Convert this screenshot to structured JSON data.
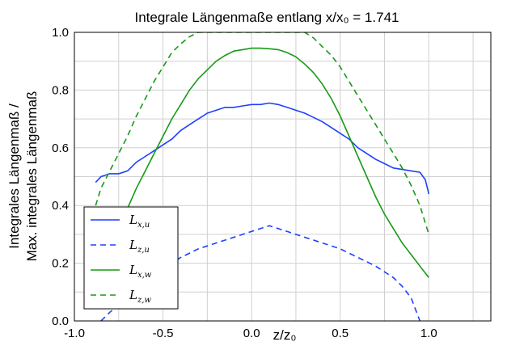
{
  "chart_data": {
    "type": "line",
    "title": "Integrale Längenmaße entlang x/x₀ = 1.741",
    "xlabel": "z/z₀",
    "ylabel_line1": "Integrales Längenmaß /",
    "ylabel_line2": "Max. integrales Längenmaß",
    "xlim": [
      -1.0,
      1.35
    ],
    "ylim": [
      0.0,
      1.0
    ],
    "xticks": [
      -1.0,
      -0.5,
      0.0,
      0.5,
      1.0
    ],
    "xtick_labels": [
      "-1.0",
      "-0.5",
      "0.0",
      "0.5",
      "1.0"
    ],
    "yticks": [
      0.0,
      0.2,
      0.4,
      0.6,
      0.8,
      1.0
    ],
    "ytick_labels": [
      "0.0",
      "0.2",
      "0.4",
      "0.6",
      "0.8",
      "1.0"
    ],
    "grid": true,
    "legend_position": "bottom-left",
    "series": [
      {
        "name": "L_x,u",
        "color": "#1f3fff",
        "dash": "solid",
        "x": [
          -0.88,
          -0.85,
          -0.8,
          -0.75,
          -0.7,
          -0.65,
          -0.6,
          -0.55,
          -0.5,
          -0.45,
          -0.4,
          -0.35,
          -0.3,
          -0.25,
          -0.2,
          -0.15,
          -0.1,
          -0.05,
          0.0,
          0.05,
          0.1,
          0.15,
          0.2,
          0.25,
          0.3,
          0.35,
          0.4,
          0.45,
          0.5,
          0.55,
          0.6,
          0.65,
          0.7,
          0.75,
          0.8,
          0.85,
          0.9,
          0.95,
          0.98,
          1.0
        ],
        "y": [
          0.48,
          0.5,
          0.51,
          0.51,
          0.52,
          0.55,
          0.57,
          0.59,
          0.61,
          0.63,
          0.66,
          0.68,
          0.7,
          0.72,
          0.73,
          0.74,
          0.74,
          0.745,
          0.75,
          0.75,
          0.755,
          0.75,
          0.74,
          0.73,
          0.72,
          0.705,
          0.69,
          0.67,
          0.65,
          0.63,
          0.6,
          0.58,
          0.56,
          0.545,
          0.53,
          0.525,
          0.52,
          0.515,
          0.49,
          0.44
        ]
      },
      {
        "name": "L_z,u",
        "color": "#1f3fff",
        "dash": "dashed",
        "x": [
          -0.85,
          -0.8,
          -0.7,
          -0.6,
          -0.5,
          -0.4,
          -0.3,
          -0.2,
          -0.1,
          0.0,
          0.05,
          0.1,
          0.15,
          0.2,
          0.3,
          0.4,
          0.5,
          0.6,
          0.7,
          0.8,
          0.85,
          0.9,
          0.95
        ],
        "y": [
          0.0,
          0.03,
          0.08,
          0.13,
          0.18,
          0.22,
          0.25,
          0.27,
          0.29,
          0.31,
          0.32,
          0.33,
          0.32,
          0.31,
          0.29,
          0.27,
          0.25,
          0.22,
          0.19,
          0.15,
          0.12,
          0.08,
          0.0
        ]
      },
      {
        "name": "L_x,w",
        "color": "#169a16",
        "dash": "solid",
        "x": [
          -0.75,
          -0.7,
          -0.65,
          -0.6,
          -0.55,
          -0.5,
          -0.45,
          -0.4,
          -0.35,
          -0.3,
          -0.25,
          -0.2,
          -0.15,
          -0.1,
          -0.05,
          0.0,
          0.05,
          0.1,
          0.15,
          0.2,
          0.25,
          0.3,
          0.35,
          0.4,
          0.45,
          0.5,
          0.55,
          0.6,
          0.65,
          0.7,
          0.75,
          0.8,
          0.85,
          0.9,
          0.95,
          1.0
        ],
        "y": [
          0.3,
          0.39,
          0.46,
          0.52,
          0.58,
          0.64,
          0.7,
          0.75,
          0.8,
          0.84,
          0.87,
          0.9,
          0.92,
          0.935,
          0.94,
          0.945,
          0.945,
          0.943,
          0.94,
          0.93,
          0.915,
          0.89,
          0.86,
          0.82,
          0.77,
          0.71,
          0.64,
          0.57,
          0.5,
          0.43,
          0.37,
          0.32,
          0.27,
          0.23,
          0.19,
          0.15
        ]
      },
      {
        "name": "L_z,w",
        "color": "#169a16",
        "dash": "dashed",
        "x": [
          -0.88,
          -0.85,
          -0.8,
          -0.75,
          -0.7,
          -0.65,
          -0.6,
          -0.55,
          -0.5,
          -0.45,
          -0.4,
          -0.35,
          -0.3,
          -0.25,
          0.3,
          0.35,
          0.4,
          0.45,
          0.5,
          0.55,
          0.6,
          0.65,
          0.7,
          0.75,
          0.8,
          0.85,
          0.9,
          0.95,
          1.0
        ],
        "y": [
          0.4,
          0.46,
          0.52,
          0.58,
          0.64,
          0.71,
          0.77,
          0.83,
          0.88,
          0.93,
          0.96,
          0.985,
          1.0,
          1.0,
          1.0,
          0.98,
          0.95,
          0.92,
          0.88,
          0.83,
          0.78,
          0.73,
          0.68,
          0.63,
          0.58,
          0.53,
          0.47,
          0.4,
          0.3
        ]
      }
    ]
  }
}
